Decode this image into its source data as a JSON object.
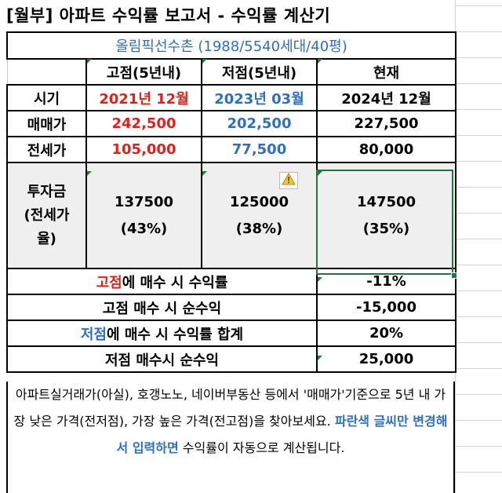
{
  "title": "[월부] 아파트 수익률 보고서 - 수익률 계산기",
  "complex": "올림픽선수촌 (1988/5540세대/40평)",
  "headers": {
    "high": "고점(5년내)",
    "low": "저점(5년내)",
    "current": "현재"
  },
  "rows": {
    "time": {
      "label": "시기",
      "high": "2021년 12월",
      "low": "2023년 03월",
      "current": "2024년 12월"
    },
    "price": {
      "label": "매매가",
      "high": "242,500",
      "low": "202,500",
      "current": "227,500"
    },
    "jeonse": {
      "label": "전세가",
      "high": "105,000",
      "low": "77,500",
      "current": "80,000"
    },
    "investment": {
      "label_line1": "투자금",
      "label_line2": "(전세가",
      "label_line3": "율)",
      "high_amount": "137500",
      "high_ratio": "(43%)",
      "low_amount": "125000",
      "low_ratio": "(38%)",
      "current_amount": "147500",
      "current_ratio": "(35%)"
    }
  },
  "results": {
    "high_return_prefix": "고점",
    "high_return_suffix": "에 매수 시 수익률",
    "high_return_value": "-11%",
    "high_profit_label": "고점 매수 시 순수익",
    "high_profit_value": "-15,000",
    "low_return_prefix": "저점",
    "low_return_suffix": "에 매수 시 수익률 합계",
    "low_return_value": "20%",
    "low_profit_label": "저점 매수시 순수익",
    "low_profit_value": "25,000"
  },
  "note": {
    "text1": "아파트실거래가(아실), 호갱노노, 네이버부동산 등에서 '매매가'기준으로 5년 내 가장 낮은 가격(전저점), 가장 높은 가격(전고점)을 찾아보세요. ",
    "highlight": "파란색 글씨만 변경해서 입력하면",
    "text2": " 수익률이 자동으로 계산됩니다."
  },
  "icons": {
    "warning": "warning-icon"
  },
  "colors": {
    "red": "#e0211b",
    "blue": "#2f6fbf",
    "selection": "#217346"
  }
}
